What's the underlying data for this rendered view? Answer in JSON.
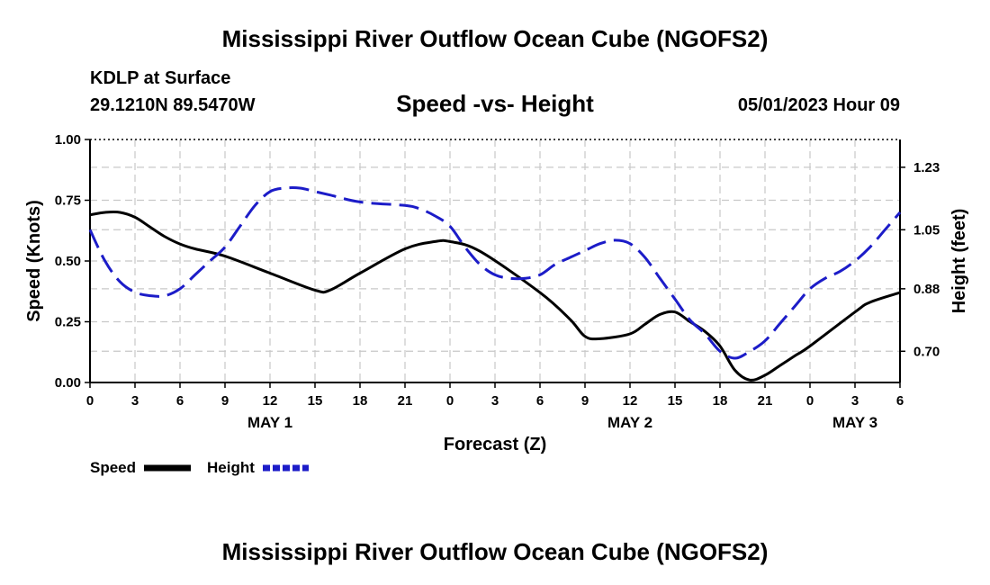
{
  "page": {
    "title": "Mississippi River Outflow Ocean Cube (NGOFS2)",
    "station": "KDLP at Surface",
    "coords": "29.1210N  89.5470W",
    "subtitle": "Speed -vs- Height",
    "datetime": "05/01/2023 Hour 09",
    "bottom_title": "Mississippi River Outflow Ocean Cube (NGOFS2)"
  },
  "chart_data": {
    "type": "line",
    "title": "Speed -vs- Height",
    "xlabel": "Forecast (Z)",
    "ylabel": "Speed (Knots)",
    "y2label": "Height (feet)",
    "xlim": [
      0,
      54
    ],
    "ylim": [
      0,
      1
    ],
    "y2lim": [
      0.61,
      1.31
    ],
    "x_ticks": [
      0,
      3,
      6,
      9,
      12,
      15,
      18,
      21,
      24,
      27,
      30,
      33,
      36,
      39,
      42,
      45,
      48,
      51,
      54
    ],
    "x_tick_labels": [
      "0",
      "3",
      "6",
      "9",
      "12",
      "15",
      "18",
      "21",
      "0",
      "3",
      "6",
      "9",
      "12",
      "15",
      "18",
      "21",
      "0",
      "3",
      "6"
    ],
    "date_labels": [
      {
        "x": 12,
        "label": "MAY 1"
      },
      {
        "x": 36,
        "label": "MAY 2"
      },
      {
        "x": 51,
        "label": "MAY 3"
      }
    ],
    "y_ticks": [
      0,
      0.25,
      0.5,
      0.75,
      1.0
    ],
    "y_tick_labels": [
      "0.00",
      "0.25",
      "0.50",
      "0.75",
      "1.00"
    ],
    "y2_ticks": [
      0.7,
      0.88,
      1.05,
      1.23
    ],
    "y2_tick_labels": [
      "0.70",
      "0.88",
      "1.05",
      "1.23"
    ],
    "grid": true,
    "legend_position": "bottom-left",
    "series": [
      {
        "name": "Speed",
        "axis": "left",
        "color": "#000000",
        "dash": "solid",
        "x": [
          0,
          1,
          2,
          3,
          4,
          5,
          6,
          7,
          9,
          12,
          15,
          16,
          18,
          21,
          23,
          24,
          26,
          30,
          32,
          33,
          34,
          36,
          37,
          38,
          39,
          40,
          41,
          42,
          43,
          44,
          45,
          46,
          47,
          48,
          51,
          52,
          54
        ],
        "values": [
          0.69,
          0.7,
          0.7,
          0.68,
          0.64,
          0.6,
          0.57,
          0.55,
          0.52,
          0.45,
          0.38,
          0.38,
          0.45,
          0.55,
          0.58,
          0.58,
          0.54,
          0.37,
          0.26,
          0.19,
          0.18,
          0.2,
          0.24,
          0.28,
          0.29,
          0.25,
          0.21,
          0.15,
          0.05,
          0.01,
          0.03,
          0.07,
          0.11,
          0.15,
          0.29,
          0.33,
          0.37
        ]
      },
      {
        "name": "Height",
        "axis": "right",
        "color": "#1c1cc8",
        "dash": "dashed",
        "x": [
          0,
          1,
          2,
          3,
          4,
          5,
          6,
          7,
          8,
          9,
          10,
          11,
          12,
          13,
          14,
          15,
          16,
          18,
          21,
          22,
          23,
          24,
          25,
          26,
          27,
          28,
          29,
          30,
          31,
          32,
          33,
          34,
          35,
          36,
          37,
          38,
          39,
          40,
          41,
          42,
          43,
          44,
          45,
          46,
          47,
          48,
          49,
          50,
          51,
          52,
          53,
          54
        ],
        "values": [
          1.05,
          0.96,
          0.9,
          0.87,
          0.86,
          0.86,
          0.88,
          0.92,
          0.96,
          1.0,
          1.06,
          1.12,
          1.16,
          1.17,
          1.17,
          1.16,
          1.15,
          1.13,
          1.12,
          1.11,
          1.09,
          1.06,
          1.0,
          0.95,
          0.92,
          0.91,
          0.91,
          0.92,
          0.95,
          0.97,
          0.99,
          1.01,
          1.02,
          1.01,
          0.97,
          0.91,
          0.85,
          0.79,
          0.75,
          0.7,
          0.68,
          0.7,
          0.73,
          0.78,
          0.83,
          0.88,
          0.91,
          0.93,
          0.96,
          1.0,
          1.05,
          1.1
        ]
      }
    ]
  }
}
